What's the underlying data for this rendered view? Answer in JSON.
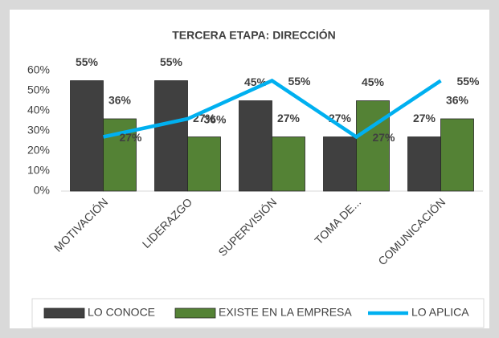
{
  "chart_data": {
    "type": "bar",
    "title": "TERCERA ETAPA: DIRECCIÓN",
    "categories": [
      "MOTIVACIÓN",
      "LIDERAZGO",
      "SUPERVISIÓN",
      "TOMA DE...",
      "COMUNICACIÓN"
    ],
    "series": [
      {
        "name": "LO CONOCE",
        "type": "bar",
        "color": "#404040",
        "values": [
          55,
          55,
          45,
          27,
          27
        ],
        "value_labels": [
          "55%",
          "55%",
          "45%",
          "27%",
          "27%"
        ]
      },
      {
        "name": "EXISTE EN LA EMPRESA",
        "type": "bar",
        "color": "#548235",
        "values": [
          36,
          27,
          27,
          45,
          36
        ],
        "value_labels": [
          "36%",
          "27%",
          "27%",
          "45%",
          "36%"
        ]
      },
      {
        "name": "LO APLICA",
        "type": "line",
        "color": "#00b0f0",
        "values": [
          27,
          36,
          55,
          27,
          55
        ],
        "value_labels": [
          "27%",
          "36%",
          "55%",
          "27%",
          "55%"
        ]
      }
    ],
    "ylim": [
      0,
      60
    ],
    "yticks": [
      {
        "value": 0,
        "label": "0%"
      },
      {
        "value": 10,
        "label": "10%"
      },
      {
        "value": 20,
        "label": "20%"
      },
      {
        "value": 30,
        "label": "30%"
      },
      {
        "value": 40,
        "label": "40%"
      },
      {
        "value": 50,
        "label": "50%"
      },
      {
        "value": 60,
        "label": "60%"
      }
    ],
    "grid": false,
    "legend": "bottom"
  }
}
